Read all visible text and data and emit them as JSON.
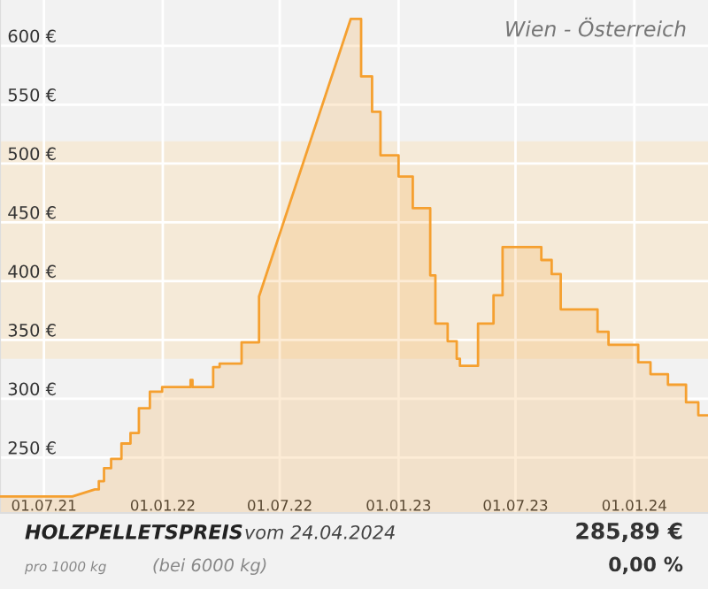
{
  "chart_data": {
    "type": "line",
    "title": "Wien - Österreich",
    "x": [
      "2021-04-24",
      "2021-08-14",
      "2021-09-18",
      "2021-09-24",
      "2021-09-24",
      "2021-10-02",
      "2021-10-02",
      "2021-10-13",
      "2021-10-13",
      "2021-10-29",
      "2021-10-29",
      "2021-11-12",
      "2021-11-12",
      "2021-11-25",
      "2021-11-25",
      "2021-12-12",
      "2021-12-12",
      "2021-12-31",
      "2021-12-31",
      "2022-02-13",
      "2022-02-13",
      "2022-02-16",
      "2022-02-16",
      "2022-03-20",
      "2022-03-20",
      "2022-03-30",
      "2022-03-30",
      "2022-05-03",
      "2022-05-03",
      "2022-05-30",
      "2022-05-30",
      "2022-10-19",
      "2022-11-04",
      "2022-11-04",
      "2022-11-21",
      "2022-11-21",
      "2022-12-04",
      "2022-12-04",
      "2023-01-01",
      "2023-01-01",
      "2023-01-23",
      "2023-01-23",
      "2023-02-19",
      "2023-02-19",
      "2023-02-27",
      "2023-02-27",
      "2023-03-18",
      "2023-03-18",
      "2023-04-01",
      "2023-04-01",
      "2023-04-06",
      "2023-04-06",
      "2023-05-04",
      "2023-05-04",
      "2023-05-28",
      "2023-05-28",
      "2023-06-11",
      "2023-06-11",
      "2023-08-10",
      "2023-08-10",
      "2023-08-26",
      "2023-08-26",
      "2023-09-09",
      "2023-09-09",
      "2023-11-05",
      "2023-11-05",
      "2023-11-22",
      "2023-11-22",
      "2024-01-07",
      "2024-01-07",
      "2024-01-26",
      "2024-01-26",
      "2024-02-22",
      "2024-02-22",
      "2024-03-21",
      "2024-03-21",
      "2024-04-09",
      "2024-04-09",
      "2024-04-24"
    ],
    "series": [
      {
        "color": "#f5a030",
        "values": [
          217,
          217,
          223,
          223,
          230,
          230,
          241,
          241,
          249,
          249,
          262,
          262,
          271,
          271,
          292,
          292,
          306,
          306,
          310,
          310,
          316,
          316,
          310,
          310,
          327,
          327,
          330,
          330,
          348,
          348,
          387,
          623,
          623,
          574,
          574,
          544,
          544,
          507,
          507,
          489,
          489,
          462,
          462,
          405,
          405,
          364,
          364,
          349,
          349,
          334,
          334,
          328,
          328,
          364,
          364,
          388,
          388,
          429,
          429,
          418,
          418,
          406,
          406,
          376,
          376,
          357,
          357,
          346,
          346,
          331,
          331,
          321,
          321,
          312,
          312,
          297,
          297,
          286,
          286
        ]
      }
    ],
    "xlim": [
      "2021-04-24",
      "2024-04-24"
    ],
    "xticks": [
      {
        "value": "2021-07-01",
        "label": "01.07.21"
      },
      {
        "value": "2022-01-01",
        "label": "01.01.22"
      },
      {
        "value": "2022-07-01",
        "label": "01.07.22"
      },
      {
        "value": "2023-01-01",
        "label": "01.01.23"
      },
      {
        "value": "2023-07-01",
        "label": "01.07.23"
      },
      {
        "value": "2024-01-01",
        "label": "01.01.24"
      }
    ],
    "ylim": [
      203,
      639
    ],
    "yticks": [
      {
        "value": 250,
        "label": "250 €"
      },
      {
        "value": 300,
        "label": "300 €"
      },
      {
        "value": 350,
        "label": "350 €"
      },
      {
        "value": 400,
        "label": "400 €"
      },
      {
        "value": 450,
        "label": "450 €"
      },
      {
        "value": 500,
        "label": "500 €"
      },
      {
        "value": 550,
        "label": "550 €"
      },
      {
        "value": 600,
        "label": "600 €"
      }
    ],
    "bands": [
      {
        "axis": "y",
        "from": 334,
        "to": 519,
        "color": "#f5ead8"
      }
    ],
    "grid": true,
    "marker": "none",
    "annotations": [
      "HOLZPELLETSPREIS",
      "vom 24.04.2024",
      "pro 1000 kg",
      "(bei 6000 kg)",
      "285,89 €",
      "0,00 %"
    ]
  }
}
